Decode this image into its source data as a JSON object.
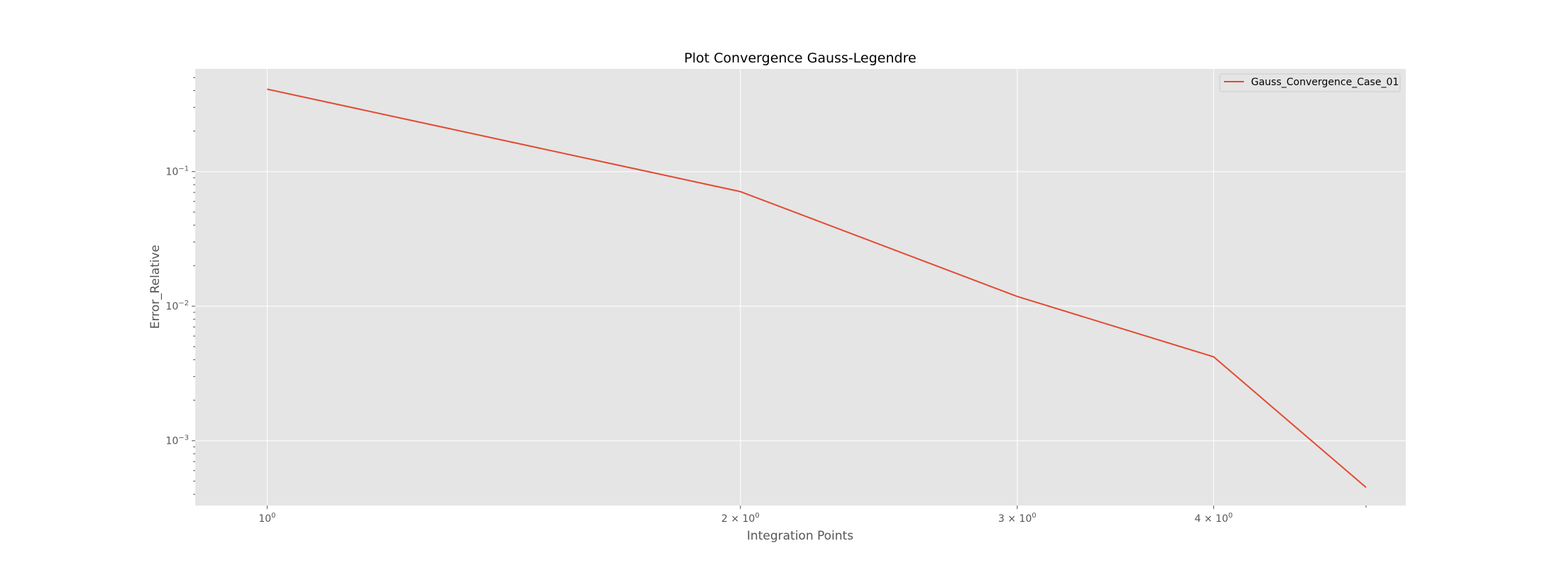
{
  "chart_data": {
    "type": "line",
    "title": "Plot Convergence Gauss-Legendre",
    "xlabel": "Integration Points",
    "ylabel": "Error_Relative",
    "xscale": "log",
    "yscale": "log",
    "xlim": [
      0.9,
      5.3
    ],
    "ylim": [
      0.00033,
      0.58
    ],
    "grid": true,
    "legend": "top-right",
    "x_ticks": [
      {
        "value": 1,
        "base": "10",
        "exp": "0"
      },
      {
        "value": 2,
        "base": "2 × 10",
        "exp": "0"
      },
      {
        "value": 3,
        "base": "3 × 10",
        "exp": "0"
      },
      {
        "value": 4,
        "base": "4 × 10",
        "exp": "0"
      }
    ],
    "y_ticks": [
      {
        "value": 0.1,
        "base": "10",
        "exp": "−1"
      },
      {
        "value": 0.01,
        "base": "10",
        "exp": "−2"
      },
      {
        "value": 0.001,
        "base": "10",
        "exp": "−3"
      }
    ],
    "series": [
      {
        "name": "Gauss_Convergence_Case_01",
        "color": "#E24A33",
        "x": [
          1,
          2,
          3,
          4,
          5
        ],
        "y": [
          0.41,
          0.071,
          0.0118,
          0.0042,
          0.00045
        ]
      }
    ],
    "colors": {
      "plot_background": "#E5E5E5",
      "grid": "#FFFFFF",
      "text": "#555555"
    }
  }
}
